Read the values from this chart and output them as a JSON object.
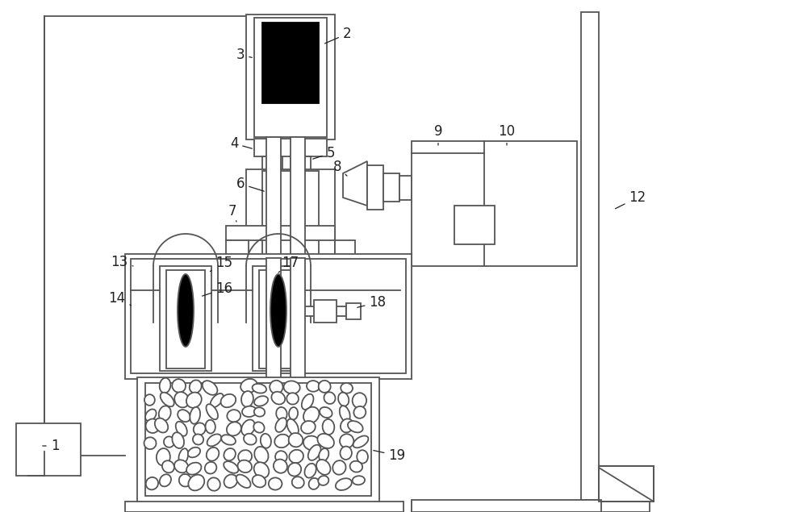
{
  "bg_color": "#ffffff",
  "line_color": "#555555",
  "dark_color": "#222222",
  "label_fs": 12,
  "lw": 1.3
}
